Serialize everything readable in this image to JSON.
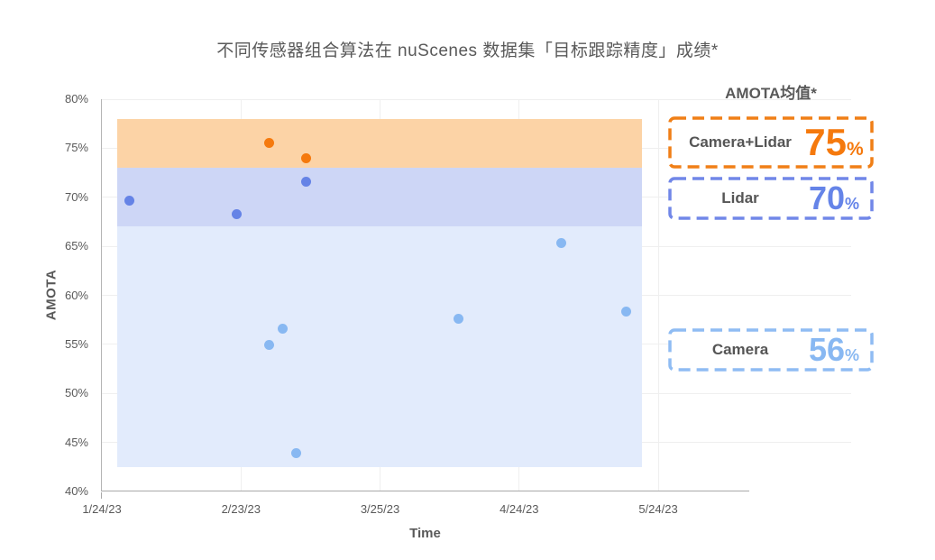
{
  "chart_data": {
    "type": "scatter",
    "title": "不同传感器组合算法在 nuScenes 数据集「目标跟踪精度」成绩*",
    "xlabel": "Time",
    "ylabel": "AMOTA",
    "ylim": [
      40,
      80
    ],
    "grid": true,
    "legend_position": "right",
    "x_ticks": [
      {
        "label": "1/24/23",
        "day": 0
      },
      {
        "label": "2/23/23",
        "day": 30
      },
      {
        "label": "3/25/23",
        "day": 60
      },
      {
        "label": "4/24/23",
        "day": 90
      },
      {
        "label": "5/24/23",
        "day": 120
      }
    ],
    "y_ticks": [
      {
        "label": "80%",
        "value": 80
      },
      {
        "label": "75%",
        "value": 75
      },
      {
        "label": "70%",
        "value": 70
      },
      {
        "label": "65%",
        "value": 65
      },
      {
        "label": "60%",
        "value": 60
      },
      {
        "label": "55%",
        "value": 55
      },
      {
        "label": "50%",
        "value": 50
      },
      {
        "label": "45%",
        "value": 45
      },
      {
        "label": "40%",
        "value": 40
      }
    ],
    "bands": [
      {
        "key": "camera-lidar",
        "label": "Camera+Lidar",
        "ymin": 73,
        "ymax": 78,
        "color": "#FCD3A6"
      },
      {
        "key": "lidar",
        "label": "Lidar",
        "ymin": 67,
        "ymax": 73,
        "color": "#CDD6F6"
      },
      {
        "key": "camera",
        "label": "Camera",
        "ymin": 42.5,
        "ymax": 67,
        "color": "#E2EBFC"
      }
    ],
    "band_x_days": [
      3.3,
      116.5
    ],
    "series": [
      {
        "key": "camera-lidar",
        "name": "Camera+Lidar",
        "color": "#F5790D",
        "points": [
          {
            "date": "3/1/23",
            "day": 36,
            "value": 75.5
          },
          {
            "date": "3/9/23",
            "day": 44,
            "value": 74.0
          }
        ]
      },
      {
        "key": "lidar",
        "name": "Lidar",
        "color": "#6583E6",
        "points": [
          {
            "date": "1/30/23",
            "day": 6,
            "value": 69.7
          },
          {
            "date": "2/22/23",
            "day": 29,
            "value": 68.3
          },
          {
            "date": "3/9/23",
            "day": 44,
            "value": 71.6
          }
        ]
      },
      {
        "key": "camera",
        "name": "Camera",
        "color": "#88B8F2",
        "points": [
          {
            "date": "3/1/23",
            "day": 36,
            "value": 54.9
          },
          {
            "date": "3/4/23",
            "day": 39,
            "value": 56.6
          },
          {
            "date": "3/7/23",
            "day": 42,
            "value": 43.9
          },
          {
            "date": "4/11/23",
            "day": 77,
            "value": 57.6
          },
          {
            "date": "5/3/23",
            "day": 99,
            "value": 65.3
          },
          {
            "date": "5/17/23",
            "day": 113,
            "value": 58.3
          }
        ]
      }
    ]
  },
  "legend": {
    "header": "AMOTA均值*",
    "items": [
      {
        "key": "camera-lidar",
        "label": "Camera+Lidar",
        "value": "75",
        "unit": "%",
        "number_color": "#F5790D",
        "border_color": "#F07F16"
      },
      {
        "key": "lidar",
        "label": "Lidar",
        "value": "70",
        "unit": "%",
        "number_color": "#6584E8",
        "border_color": "#7187E8"
      },
      {
        "key": "camera",
        "label": "Camera",
        "value": "56",
        "unit": "%",
        "number_color": "#88B8F2",
        "border_color": "#8FBCF3"
      }
    ]
  }
}
